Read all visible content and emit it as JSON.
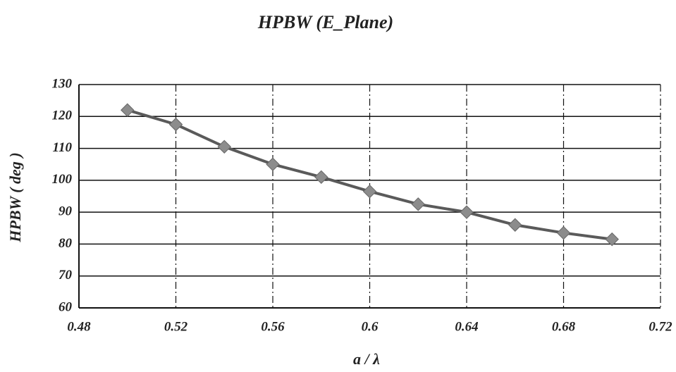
{
  "chart_data": {
    "type": "line",
    "title": "HPBW (E_Plane)",
    "x_label": "a / λ",
    "y_label": "HPBW ( deg )",
    "x": [
      0.5,
      0.52,
      0.54,
      0.56,
      0.58,
      0.6,
      0.62,
      0.64,
      0.66,
      0.68,
      0.7
    ],
    "values": [
      122,
      117.5,
      110.5,
      105,
      101,
      96.5,
      92.5,
      90,
      86,
      83.5,
      81.5
    ],
    "color": "#5a5a5a",
    "marker_color": "#8c8c8c",
    "xlim": [
      0.48,
      0.72
    ],
    "xticks": [
      0.48,
      0.52,
      0.56,
      0.6,
      0.64,
      0.68,
      0.72
    ],
    "ylim": [
      60,
      130
    ],
    "yticks": [
      60,
      70,
      80,
      90,
      100,
      110,
      120,
      130
    ],
    "grid": true
  }
}
